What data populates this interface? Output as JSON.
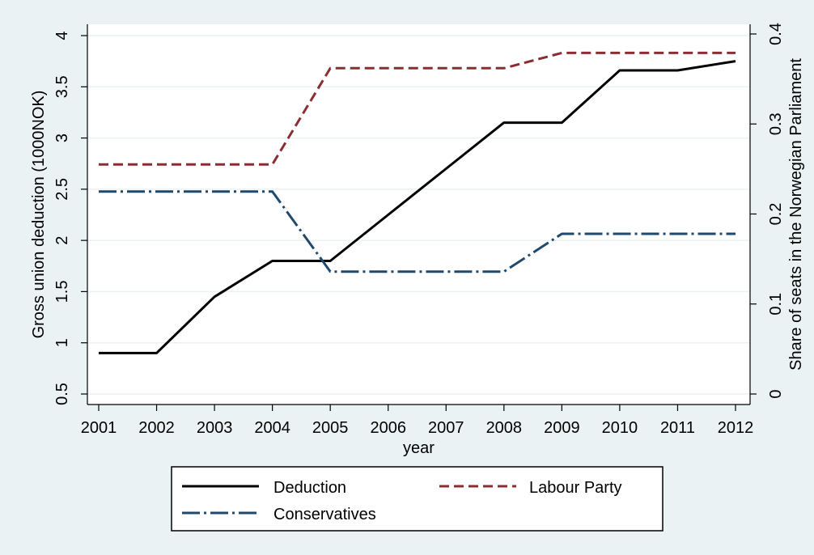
{
  "chart_data": {
    "type": "line",
    "xlabel": "year",
    "ylabel_left": "Gross union deduction (1000NOK)",
    "ylabel_right": "Share of seats in the Norwegian Parliament",
    "x": [
      2001,
      2002,
      2003,
      2004,
      2005,
      2006,
      2007,
      2008,
      2009,
      2010,
      2011,
      2012
    ],
    "x_ticks": [
      "2001",
      "2002",
      "2003",
      "2004",
      "2005",
      "2006",
      "2007",
      "2008",
      "2009",
      "2010",
      "2011",
      "2012"
    ],
    "ylim_left": [
      0.5,
      4
    ],
    "ylim_right": [
      0,
      0.4
    ],
    "y_ticks_left": [
      "0.5",
      "1",
      "1.5",
      "2",
      "2.5",
      "3",
      "3.5",
      "4"
    ],
    "y_ticks_right": [
      "0",
      "0.1",
      "0.2",
      "0.3",
      "0.4"
    ],
    "grid": true,
    "legend_position": "bottom",
    "series": [
      {
        "name": "Deduction",
        "axis": "left",
        "color": "#000000",
        "dash": "solid",
        "values": [
          0.9,
          0.9,
          1.45,
          1.8,
          1.8,
          2.25,
          2.7,
          3.15,
          3.15,
          3.66,
          3.66,
          3.75
        ]
      },
      {
        "name": "Labour Party",
        "axis": "right",
        "color": "#8b2e34",
        "dash": "dash",
        "values": [
          0.255,
          0.255,
          0.255,
          0.255,
          0.362,
          0.362,
          0.362,
          0.362,
          0.379,
          0.379,
          0.379,
          0.379
        ]
      },
      {
        "name": "Conservatives",
        "axis": "right",
        "color": "#1f4a6e",
        "dash": "dashdot",
        "values": [
          0.225,
          0.225,
          0.225,
          0.225,
          0.136,
          0.136,
          0.136,
          0.136,
          0.178,
          0.178,
          0.178,
          0.178
        ]
      }
    ]
  }
}
